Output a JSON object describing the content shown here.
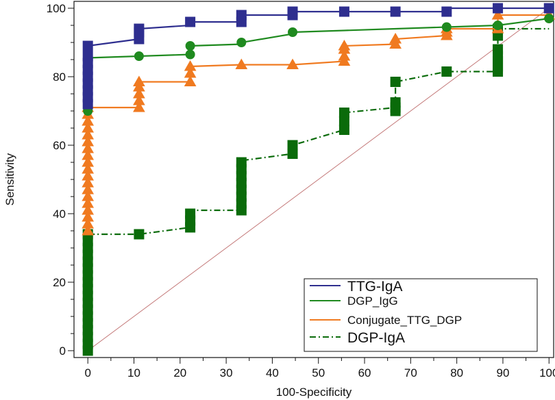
{
  "chart_data": {
    "type": "line",
    "title": "",
    "xlabel": "100-Specificity",
    "ylabel": "Sensitivity",
    "xlim": [
      -3,
      101
    ],
    "ylim": [
      -2,
      102
    ],
    "xticks": [
      0,
      10,
      20,
      30,
      40,
      50,
      60,
      70,
      80,
      90,
      100
    ],
    "yticks": [
      0,
      20,
      40,
      60,
      80,
      100
    ],
    "grid": false,
    "legend_position": "bottom-right",
    "reference_line": {
      "name": "Chance diagonal",
      "x": [
        0,
        100
      ],
      "y": [
        0,
        100
      ],
      "color": "#c47a7a"
    },
    "series": [
      {
        "name": "TTG-IgA",
        "color": "#2e2e8f",
        "style": "solid",
        "marker": "square",
        "legend_size": "large",
        "x": [
          0,
          0,
          11.1,
          11.1,
          22.2,
          22.2,
          33.3,
          33.3,
          44.4,
          44.4,
          55.6,
          66.7,
          77.8,
          77.8,
          88.9,
          88.9,
          100
        ],
        "y": [
          72,
          89,
          91,
          94,
          95,
          96,
          96,
          98,
          98,
          99,
          99,
          99,
          99,
          100,
          100,
          100,
          100
        ],
        "markers_x": [
          0,
          0,
          0,
          0,
          0,
          0,
          0,
          0,
          0,
          11.1,
          11.1,
          11.1,
          22.2,
          33.3,
          33.3,
          44.4,
          44.4,
          55.6,
          66.7,
          77.8,
          88.9,
          100
        ],
        "markers_y": [
          72,
          74,
          76,
          78,
          80,
          82,
          84,
          86,
          89,
          91,
          93,
          94,
          96,
          96,
          98,
          98,
          99,
          99,
          99,
          99,
          100,
          100
        ]
      },
      {
        "name": "DGP_IgG",
        "color": "#1f8a1f",
        "style": "solid",
        "marker": "circle",
        "legend_size": "small",
        "x": [
          0,
          0,
          11.1,
          22.2,
          22.2,
          33.3,
          33.3,
          44.4,
          44.4,
          55.6,
          66.7,
          77.8,
          88.9,
          100
        ],
        "y": [
          70,
          85.5,
          86,
          86.5,
          89,
          89.5,
          90,
          92.5,
          93,
          93.5,
          94,
          94.5,
          95,
          97
        ],
        "markers_x": [
          0,
          0,
          0,
          0,
          0,
          0,
          0,
          0,
          11.1,
          22.2,
          22.2,
          33.3,
          44.4,
          77.8,
          88.9,
          100
        ],
        "markers_y": [
          70,
          72,
          74,
          76,
          78,
          80,
          83,
          85.5,
          86,
          86.5,
          89,
          90,
          93,
          94.5,
          95,
          97
        ]
      },
      {
        "name": "Conjugate_TTG_DGP",
        "color": "#f07a20",
        "style": "solid",
        "marker": "triangle",
        "legend_size": "small",
        "x": [
          0,
          0,
          11.1,
          11.1,
          22.2,
          22.2,
          33.3,
          44.4,
          55.6,
          55.6,
          66.7,
          66.7,
          77.8,
          77.8,
          88.9,
          88.9,
          100
        ],
        "y": [
          35,
          71,
          71,
          78.5,
          78.5,
          83,
          83.5,
          83.5,
          84.5,
          89,
          89.5,
          91,
          92,
          94,
          94,
          98,
          98
        ],
        "markers_x": [
          0,
          0,
          0,
          0,
          0,
          0,
          0,
          0,
          0,
          0,
          0,
          0,
          0,
          0,
          0,
          0,
          0,
          0,
          0,
          11.1,
          11.1,
          11.1,
          11.1,
          11.1,
          22.2,
          22.2,
          22.2,
          33.3,
          44.4,
          55.6,
          55.6,
          55.6,
          55.6,
          66.7,
          66.7,
          66.7,
          77.8,
          77.8,
          77.8,
          88.9,
          88.9,
          100
        ],
        "markers_y": [
          35,
          37,
          39,
          41,
          43,
          45,
          47,
          49,
          51,
          53,
          55,
          57,
          59,
          61,
          63,
          65,
          67,
          69,
          71,
          71,
          73,
          75,
          77,
          78.5,
          78.5,
          81,
          83,
          83.5,
          83.5,
          84.5,
          86,
          88,
          89,
          89.5,
          91,
          91,
          92,
          93,
          94,
          94,
          98,
          98
        ]
      },
      {
        "name": "DGP-IgA",
        "color": "#0a6b0a",
        "style": "dashdot",
        "marker": "square",
        "legend_size": "large",
        "x": [
          0,
          0,
          0,
          11.1,
          22.2,
          22.2,
          33.3,
          33.3,
          44.4,
          44.4,
          55.6,
          55.6,
          66.7,
          66.7,
          77.8,
          88.9,
          88.9,
          100
        ],
        "y": [
          0,
          34,
          34,
          34,
          36,
          41,
          41,
          55.5,
          57.5,
          60,
          64.5,
          69.5,
          71,
          78.5,
          81.5,
          81.5,
          94,
          94
        ],
        "markers_x": [
          0,
          0,
          0,
          0,
          0,
          0,
          0,
          0,
          0,
          0,
          0,
          0,
          0,
          0,
          0,
          0,
          0,
          0,
          11.1,
          22.2,
          22.2,
          22.2,
          33.3,
          33.3,
          33.3,
          33.3,
          33.3,
          33.3,
          33.3,
          33.3,
          44.4,
          44.4,
          55.6,
          55.6,
          55.6,
          66.7,
          66.7,
          66.7,
          66.7,
          77.8,
          88.9,
          88.9,
          88.9,
          88.9,
          88.9,
          88.9,
          88.9
        ],
        "markers_y": [
          0,
          2,
          4,
          6,
          8,
          10,
          12,
          14,
          16,
          18,
          20,
          22,
          24,
          26,
          28,
          30,
          32,
          34,
          34,
          36,
          38,
          40,
          41,
          43,
          45,
          47,
          49,
          51,
          53,
          55,
          57.5,
          60,
          64.5,
          67,
          69.5,
          70,
          71,
          72.5,
          78.5,
          81.5,
          81.5,
          83,
          84.5,
          86,
          88,
          92,
          94
        ]
      }
    ]
  }
}
